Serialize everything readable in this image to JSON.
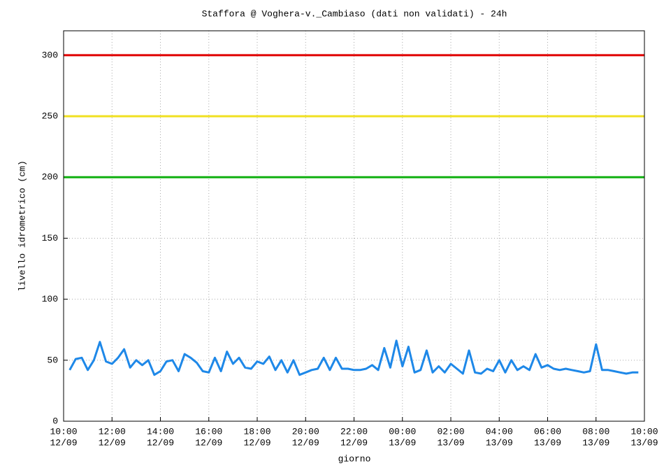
{
  "chart_data": {
    "type": "line",
    "title": "Staffora @ Voghera-v._Cambiaso (dati non validati) - 24h",
    "x_label": "giorno",
    "y_label": "livello idrometrico (cm)",
    "x": [
      "12/09 10:15",
      "12/09 10:30",
      "12/09 10:45",
      "12/09 11:00",
      "12/09 11:15",
      "12/09 11:30",
      "12/09 11:45",
      "12/09 12:00",
      "12/09 12:15",
      "12/09 12:30",
      "12/09 12:45",
      "12/09 13:00",
      "12/09 13:15",
      "12/09 13:30",
      "12/09 13:45",
      "12/09 14:00",
      "12/09 14:15",
      "12/09 14:30",
      "12/09 14:45",
      "12/09 15:00",
      "12/09 15:15",
      "12/09 15:30",
      "12/09 15:45",
      "12/09 16:00",
      "12/09 16:15",
      "12/09 16:30",
      "12/09 16:45",
      "12/09 17:00",
      "12/09 17:15",
      "12/09 17:30",
      "12/09 17:45",
      "12/09 18:00",
      "12/09 18:15",
      "12/09 18:30",
      "12/09 18:45",
      "12/09 19:00",
      "12/09 19:15",
      "12/09 19:30",
      "12/09 19:45",
      "12/09 20:00",
      "12/09 20:15",
      "12/09 20:30",
      "12/09 20:45",
      "12/09 21:00",
      "12/09 21:15",
      "12/09 21:30",
      "12/09 21:45",
      "12/09 22:00",
      "12/09 22:15",
      "12/09 22:30",
      "12/09 22:45",
      "12/09 23:00",
      "12/09 23:15",
      "12/09 23:30",
      "12/09 23:45",
      "13/09 00:00",
      "13/09 00:15",
      "13/09 00:30",
      "13/09 00:45",
      "13/09 01:00",
      "13/09 01:15",
      "13/09 01:30",
      "13/09 01:45",
      "13/09 02:00",
      "13/09 02:15",
      "13/09 02:30",
      "13/09 02:45",
      "13/09 03:00",
      "13/09 03:15",
      "13/09 03:30",
      "13/09 03:45",
      "13/09 04:00",
      "13/09 04:15",
      "13/09 04:30",
      "13/09 04:45",
      "13/09 05:00",
      "13/09 05:15",
      "13/09 05:30",
      "13/09 05:45",
      "13/09 06:00",
      "13/09 06:15",
      "13/09 06:30",
      "13/09 06:45",
      "13/09 07:00",
      "13/09 07:15",
      "13/09 07:30",
      "13/09 07:45",
      "13/09 08:00",
      "13/09 08:15",
      "13/09 08:30",
      "13/09 08:45",
      "13/09 09:00",
      "13/09 09:15",
      "13/09 09:30",
      "13/09 09:45"
    ],
    "series": [
      {
        "color": "#1e88e8",
        "values": [
          42,
          51,
          52,
          42,
          50,
          65,
          49,
          47,
          52,
          59,
          44,
          50,
          46,
          50,
          38,
          41,
          49,
          50,
          41,
          55,
          52,
          48,
          41,
          40,
          52,
          41,
          57,
          47,
          52,
          44,
          43,
          49,
          47,
          53,
          42,
          50,
          40,
          50,
          38,
          40,
          42,
          43,
          52,
          42,
          52,
          43,
          43,
          42,
          42,
          43,
          46,
          42,
          60,
          44,
          66,
          45,
          61,
          40,
          42,
          58,
          40,
          45,
          40,
          47,
          43,
          39,
          58,
          40,
          39,
          43,
          41,
          50,
          40,
          50,
          42,
          45,
          42,
          55,
          44,
          46,
          43,
          42,
          43,
          42,
          41,
          40,
          41,
          63,
          42,
          42,
          41,
          40,
          39,
          40,
          40
        ]
      }
    ],
    "thresholds": [
      {
        "value": 300,
        "color": "#e00000"
      },
      {
        "value": 250,
        "color": "#f0e020"
      },
      {
        "value": 200,
        "color": "#10b010"
      }
    ],
    "xlim": [
      "12/09 10:00",
      "13/09 10:00"
    ],
    "xticks": [
      {
        "value": "12/09 10:00",
        "label": [
          "10:00",
          "12/09"
        ]
      },
      {
        "value": "12/09 12:00",
        "label": [
          "12:00",
          "12/09"
        ]
      },
      {
        "value": "12/09 14:00",
        "label": [
          "14:00",
          "12/09"
        ]
      },
      {
        "value": "12/09 16:00",
        "label": [
          "16:00",
          "12/09"
        ]
      },
      {
        "value": "12/09 18:00",
        "label": [
          "18:00",
          "12/09"
        ]
      },
      {
        "value": "12/09 20:00",
        "label": [
          "20:00",
          "12/09"
        ]
      },
      {
        "value": "12/09 22:00",
        "label": [
          "22:00",
          "12/09"
        ]
      },
      {
        "value": "13/09 00:00",
        "label": [
          "00:00",
          "13/09"
        ]
      },
      {
        "value": "13/09 02:00",
        "label": [
          "02:00",
          "13/09"
        ]
      },
      {
        "value": "13/09 04:00",
        "label": [
          "04:00",
          "13/09"
        ]
      },
      {
        "value": "13/09 06:00",
        "label": [
          "06:00",
          "13/09"
        ]
      },
      {
        "value": "13/09 08:00",
        "label": [
          "08:00",
          "13/09"
        ]
      },
      {
        "value": "13/09 10:00",
        "label": [
          "10:00",
          "13/09"
        ]
      }
    ],
    "ylim": [
      0,
      320
    ],
    "yticks": [
      0,
      50,
      100,
      150,
      200,
      250,
      300
    ],
    "grid": true
  }
}
